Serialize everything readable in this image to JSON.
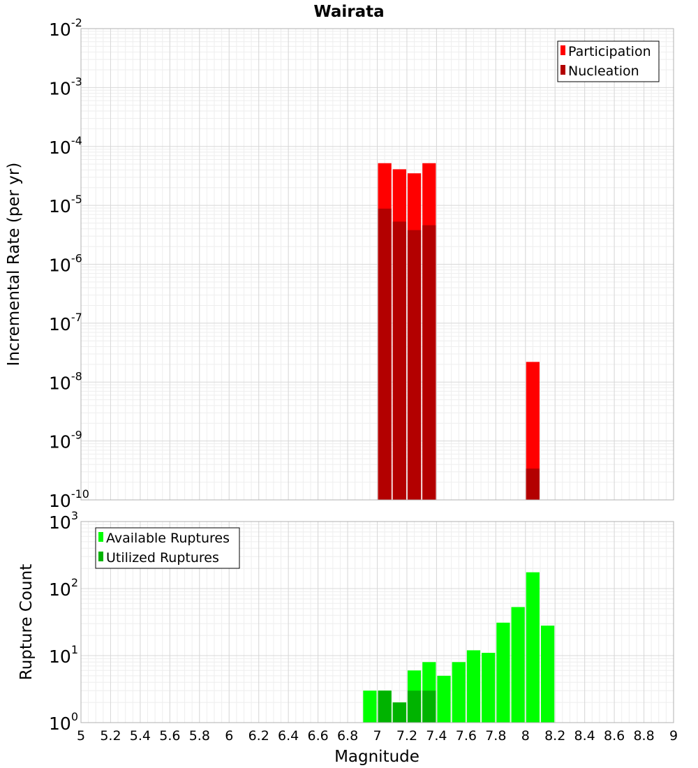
{
  "chart_data": {
    "title": "Wairata",
    "xlabel": "Magnitude",
    "xlim": [
      5,
      9
    ],
    "xticks": [
      "5",
      "5.2",
      "5.4",
      "5.6",
      "5.8",
      "6",
      "6.2",
      "6.4",
      "6.6",
      "6.8",
      "7",
      "7.2",
      "7.4",
      "7.6",
      "7.8",
      "8",
      "8.2",
      "8.4",
      "8.6",
      "8.8",
      "9"
    ],
    "bin_width": 0.1,
    "grid": true,
    "panels": [
      {
        "type": "bar",
        "ylabel": "Incremental Rate (per yr)",
        "yscale": "log",
        "ylim_exponents": [
          -10,
          -2
        ],
        "legend_position": "top-right",
        "series": [
          {
            "name": "Participation",
            "color": "#ff0000",
            "points": [
              {
                "x": 7.05,
                "y": 5.2e-05
              },
              {
                "x": 7.15,
                "y": 4.1e-05
              },
              {
                "x": 7.25,
                "y": 3.5e-05
              },
              {
                "x": 7.35,
                "y": 5.2e-05
              },
              {
                "x": 8.05,
                "y": 2.2e-08
              }
            ]
          },
          {
            "name": "Nucleation",
            "color": "#b30000",
            "points": [
              {
                "x": 7.05,
                "y": 8.8e-06
              },
              {
                "x": 7.15,
                "y": 5.3e-06
              },
              {
                "x": 7.25,
                "y": 3.8e-06
              },
              {
                "x": 7.35,
                "y": 4.6e-06
              },
              {
                "x": 8.05,
                "y": 3.4e-10
              }
            ]
          }
        ]
      },
      {
        "type": "bar",
        "ylabel": "Rupture Count",
        "yscale": "log",
        "ylim_exponents": [
          0,
          3
        ],
        "legend_position": "top-left",
        "series": [
          {
            "name": "Available Ruptures",
            "color": "#00ff00",
            "points": [
              {
                "x": 6.25,
                "y": 1
              },
              {
                "x": 6.85,
                "y": 1
              },
              {
                "x": 6.95,
                "y": 3
              },
              {
                "x": 7.05,
                "y": 3
              },
              {
                "x": 7.15,
                "y": 2
              },
              {
                "x": 7.25,
                "y": 6
              },
              {
                "x": 7.35,
                "y": 8
              },
              {
                "x": 7.45,
                "y": 5
              },
              {
                "x": 7.55,
                "y": 8
              },
              {
                "x": 7.65,
                "y": 12
              },
              {
                "x": 7.75,
                "y": 11
              },
              {
                "x": 7.85,
                "y": 31
              },
              {
                "x": 7.95,
                "y": 53
              },
              {
                "x": 8.05,
                "y": 175
              },
              {
                "x": 8.15,
                "y": 28
              }
            ]
          },
          {
            "name": "Utilized Ruptures",
            "color": "#00b300",
            "points": [
              {
                "x": 7.05,
                "y": 3
              },
              {
                "x": 7.15,
                "y": 2
              },
              {
                "x": 7.25,
                "y": 3
              },
              {
                "x": 7.35,
                "y": 3
              },
              {
                "x": 8.05,
                "y": 1
              }
            ]
          }
        ]
      }
    ]
  }
}
